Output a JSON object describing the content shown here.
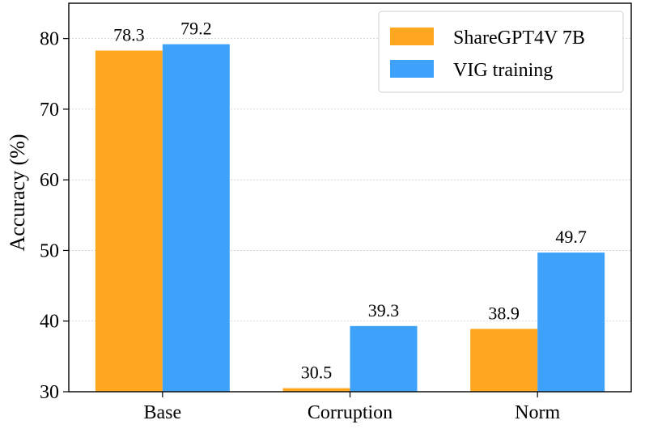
{
  "chart_data": {
    "type": "bar",
    "title": "",
    "xlabel": "",
    "ylabel": "Accuracy (%)",
    "categories": [
      "Base",
      "Corruption",
      "Norm"
    ],
    "series": [
      {
        "name": "ShareGPT4V 7B",
        "values": [
          78.3,
          30.5,
          38.9
        ],
        "value_labels": [
          "78.3",
          "30.5",
          "38.9"
        ]
      },
      {
        "name": "VIG training",
        "values": [
          79.2,
          39.3,
          49.7
        ],
        "value_labels": [
          "79.2",
          "39.3",
          "49.7"
        ]
      }
    ],
    "ylim": [
      30,
      85
    ],
    "yticks": [
      30,
      40,
      50,
      60,
      70,
      80
    ],
    "grid": true,
    "legend_position": "top-right"
  },
  "colors": {
    "series_0": "#FFA81F",
    "series_1": "#3FA2FA",
    "grid": "#cccccc",
    "axis": "#000000"
  }
}
